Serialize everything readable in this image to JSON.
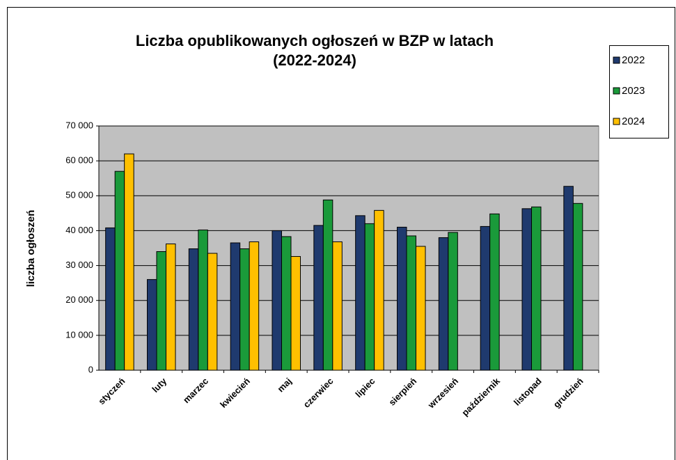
{
  "chart_data": {
    "type": "bar",
    "title": [
      "Liczba opublikowanych ogłoszeń w BZP w latach",
      "(2022-2024)"
    ],
    "y_label": "liczba ogłoszeń",
    "categories": [
      "styczeń",
      "luty",
      "marzec",
      "kwiecień",
      "maj",
      "czerwiec",
      "lipiec",
      "sierpień",
      "wrzesień",
      "październik",
      "listopad",
      "grudzień"
    ],
    "series": [
      {
        "name": "2022",
        "color": "#1f3a6e",
        "values": [
          40800,
          26000,
          34800,
          36500,
          40000,
          41500,
          44300,
          41000,
          38000,
          41200,
          46300,
          52700
        ]
      },
      {
        "name": "2023",
        "color": "#1a9a3a",
        "values": [
          57000,
          34000,
          40200,
          34800,
          38300,
          48800,
          42000,
          38500,
          39500,
          44800,
          46800,
          47800
        ]
      },
      {
        "name": "2024",
        "color": "#ffc000",
        "values": [
          62000,
          36200,
          33500,
          36800,
          32600,
          36800,
          45800,
          35500,
          null,
          null,
          null,
          null
        ]
      }
    ],
    "ylim": [
      0,
      70000
    ],
    "yticks": [
      0,
      {
        "value": 10000,
        "label": "10 000"
      },
      {
        "value": 20000,
        "label": "20 000"
      },
      {
        "value": 30000,
        "label": "30 000"
      },
      {
        "value": 40000,
        "label": "40 000"
      },
      {
        "value": 50000,
        "label": "50 000"
      },
      {
        "value": 60000,
        "label": "60 000"
      },
      {
        "value": 70000,
        "label": "70 000"
      }
    ],
    "grid": true,
    "legend": "upper right"
  }
}
